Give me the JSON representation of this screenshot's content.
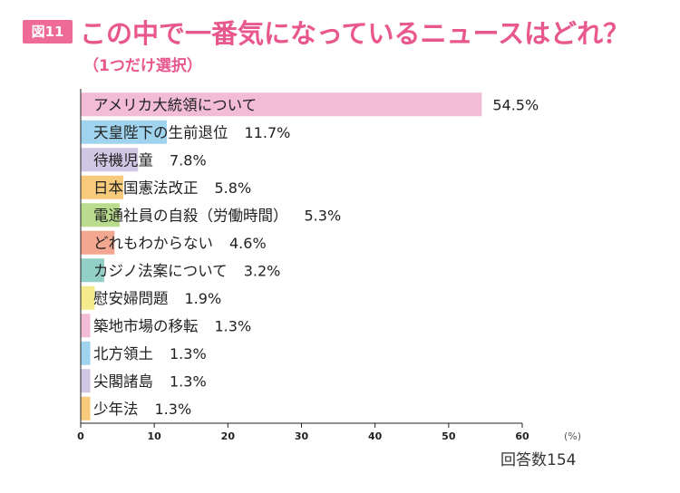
{
  "figure_label": "図11",
  "title": "この中で一番気になっているニュースはどれ？",
  "subtitle": "（1つだけ選択）",
  "respondents": "回答数154",
  "chart_data": {
    "type": "bar",
    "orientation": "horizontal",
    "categories": [
      "アメリカ大統領について",
      "天皇陛下の生前退位",
      "待機児童",
      "日本国憲法改正",
      "電通社員の自殺（労働時間）",
      "どれもわからない",
      "カジノ法案について",
      "慰安婦問題",
      "築地市場の移転",
      "北方領土",
      "尖閣諸島",
      "少年法"
    ],
    "values": [
      54.5,
      11.7,
      7.8,
      5.8,
      5.3,
      4.6,
      3.2,
      1.9,
      1.3,
      1.3,
      1.3,
      1.3
    ],
    "value_labels": [
      "54.5%",
      "11.7%",
      "7.8%",
      "5.8%",
      "5.3%",
      "4.6%",
      "3.2%",
      "1.9%",
      "1.3%",
      "1.3%",
      "1.3%",
      "1.3%"
    ],
    "colors": [
      "#f2bcd7",
      "#9fd3ee",
      "#cfc7e4",
      "#f8cb7c",
      "#b9dc8e",
      "#f3a690",
      "#92d0c7",
      "#f4ec8c",
      "#f2bcd7",
      "#9fd3ee",
      "#cfc7e4",
      "#f8cb7c"
    ],
    "xlim": [
      0,
      60
    ],
    "xticks": [
      "0",
      "10",
      "20",
      "30",
      "40",
      "50",
      "60"
    ],
    "xunit": "(%)",
    "grid": false
  }
}
